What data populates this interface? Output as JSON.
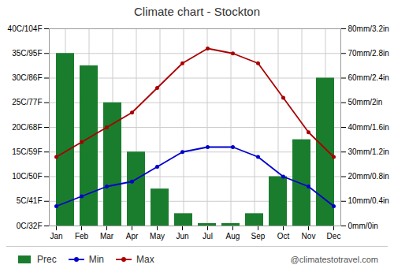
{
  "chart_data": {
    "type": "bar",
    "title": "Climate chart - Stockton",
    "categories": [
      "Jan",
      "Feb",
      "Mar",
      "Apr",
      "May",
      "Jun",
      "Jul",
      "Aug",
      "Sep",
      "Oct",
      "Nov",
      "Dec"
    ],
    "series": [
      {
        "name": "Prec",
        "type": "bar",
        "axis": "y2",
        "color": "#1a7d2e",
        "values": [
          70,
          65,
          50,
          30,
          15,
          5,
          1,
          1,
          5,
          20,
          35,
          60
        ]
      },
      {
        "name": "Min",
        "type": "line",
        "marker": "circle",
        "color": "#0000cc",
        "values": [
          4,
          6,
          8,
          9,
          12,
          15,
          16,
          16,
          14,
          10,
          8,
          4
        ]
      },
      {
        "name": "Max",
        "type": "line",
        "marker": "circle",
        "color": "#aa0000",
        "values": [
          14,
          17,
          20,
          23,
          28,
          33,
          36,
          35,
          33,
          26,
          19,
          14
        ]
      }
    ],
    "ylim": [
      0,
      40
    ],
    "yticks": [
      {
        "value": 0,
        "label": "0C/32F"
      },
      {
        "value": 5,
        "label": "5C/41F"
      },
      {
        "value": 10,
        "label": "10C/50F"
      },
      {
        "value": 15,
        "label": "15C/59F"
      },
      {
        "value": 20,
        "label": "20C/68F"
      },
      {
        "value": 25,
        "label": "25C/77F"
      },
      {
        "value": 30,
        "label": "30C/86F"
      },
      {
        "value": 35,
        "label": "35C/95F"
      },
      {
        "value": 40,
        "label": "40C/104F"
      }
    ],
    "y2lim": [
      0,
      80
    ],
    "y2ticks": [
      {
        "value": 0,
        "label": "0mm/0in"
      },
      {
        "value": 10,
        "label": "10mm/0.4in"
      },
      {
        "value": 20,
        "label": "20mm/0.8in"
      },
      {
        "value": 30,
        "label": "30mm/1.2in"
      },
      {
        "value": 40,
        "label": "40mm/1.6in"
      },
      {
        "value": 50,
        "label": "50mm/2in"
      },
      {
        "value": 60,
        "label": "60mm/2.4in"
      },
      {
        "value": 70,
        "label": "70mm/2.8in"
      },
      {
        "value": 80,
        "label": "80mm/3.2in"
      }
    ],
    "grid": true,
    "legend": "bottom",
    "annotations": [
      "@climatestotravel.com"
    ]
  }
}
